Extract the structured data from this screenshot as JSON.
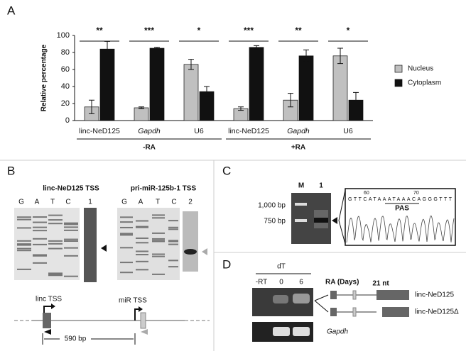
{
  "chart_data": {
    "type": "bar",
    "panel_label": "A",
    "ylabel": "Relative percentage",
    "categories": [
      "linc-NeD125",
      "Gapdh",
      "U6",
      "linc-NeD125",
      "Gapdh",
      "U6"
    ],
    "category_style": [
      "normal",
      "italic",
      "normal",
      "normal",
      "italic",
      "normal"
    ],
    "groups": [
      "-RA",
      "+RA"
    ],
    "significance": [
      "**",
      "***",
      "*",
      "***",
      "**",
      "*"
    ],
    "series": [
      {
        "name": "Nucleus",
        "color": "#c0c0c0",
        "values": [
          16,
          15,
          66,
          14,
          24,
          76
        ],
        "errors": [
          8,
          1,
          6,
          2,
          8,
          9
        ]
      },
      {
        "name": "Cytoplasm",
        "color": "#111111",
        "values": [
          84,
          85,
          34,
          86,
          76,
          24
        ],
        "errors": [
          9,
          1,
          6,
          2,
          7,
          9
        ]
      }
    ],
    "ylim": [
      0,
      100
    ],
    "yticks": [
      0,
      20,
      40,
      60,
      80,
      100
    ],
    "legend": "right"
  },
  "panel_b": {
    "label": "B",
    "gel_titles": [
      "linc-NeD125 TSS",
      "pri-miR-125b-1 TSS"
    ],
    "lanes_1": [
      "G",
      "A",
      "T",
      "C",
      "1"
    ],
    "lanes_2": [
      "G",
      "A",
      "T",
      "C",
      "2"
    ],
    "linc_tss": "linc TSS",
    "mir_tss": "miR TSS",
    "distance": "590 bp"
  },
  "panel_c": {
    "label": "C",
    "lanes": [
      "M",
      "1"
    ],
    "markers": [
      "1,000 bp",
      "750 bp"
    ],
    "positions": [
      "60",
      "70"
    ],
    "sequence": "GTTCATAAATAAACAGGGTTT",
    "motif": "PAS"
  },
  "panel_d": {
    "label": "D",
    "primer": "dT",
    "lanes": [
      "-RT",
      "0",
      "6"
    ],
    "condition": "RA (Days)",
    "gap": "21 nt",
    "isoforms": [
      "linc-NeD125",
      "linc-NeD125Δ"
    ],
    "control": "Gapdh"
  }
}
